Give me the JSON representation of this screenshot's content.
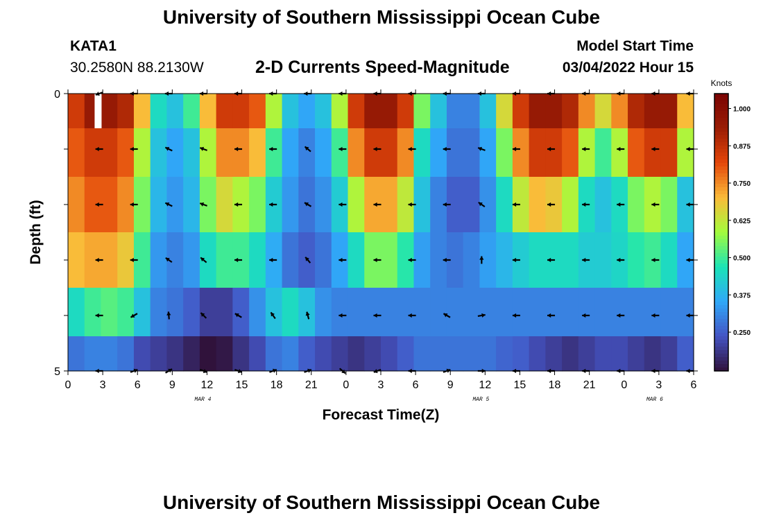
{
  "page": {
    "title": "University of Southern Mississippi Ocean Cube",
    "title_bottom": "University of Southern Mississippi Ocean Cube",
    "station_name": "KATA1",
    "station_coords": "30.2580N  88.2130W",
    "plot_title": "2-D Currents Speed-Magnitude",
    "model_label": "Model Start Time",
    "model_time": "03/04/2022 Hour 15"
  },
  "chart_data": {
    "type": "heatmap",
    "title": "2-D Currents Speed-Magnitude",
    "xlabel": "Forecast Time(Z)",
    "ylabel": "Depth (ft)",
    "x_ticks": [
      "0",
      "3",
      "6",
      "9",
      "12",
      "15",
      "18",
      "21",
      "0",
      "3",
      "6",
      "9",
      "12",
      "15",
      "18",
      "21",
      "0",
      "3",
      "6"
    ],
    "x_range_hours": [
      0,
      54
    ],
    "date_labels": [
      {
        "hour": 12,
        "label": "MAR 4"
      },
      {
        "hour": 36,
        "label": "MAR 5"
      },
      {
        "hour": 51,
        "label": "MAR 6"
      }
    ],
    "y_ticks": [
      "0",
      "5"
    ],
    "ylim": [
      0,
      5
    ],
    "colorbar": {
      "label": "Knots",
      "ticks": [
        "1.000",
        "0.875",
        "0.750",
        "0.625",
        "0.500",
        "0.375",
        "0.250"
      ],
      "tick_values": [
        1.0,
        0.875,
        0.75,
        0.625,
        0.5,
        0.375,
        0.25
      ],
      "range": [
        0.12,
        1.05
      ],
      "colors": [
        "#30123b",
        "#4454c4",
        "#30a8f8",
        "#1ae4b6",
        "#a4fc3c",
        "#fabb39",
        "#e4460a",
        "#9a1d05",
        "#7a0403"
      ]
    },
    "layers": [
      {
        "depth": 0.25,
        "speeds": [
          0.85,
          0.95,
          0.95,
          0.9,
          0.7,
          0.45,
          0.4,
          0.5,
          0.7,
          0.85,
          0.85,
          0.8,
          0.6,
          0.4,
          0.35,
          0.4,
          0.6,
          0.85,
          0.95,
          0.95,
          0.85,
          0.55,
          0.4,
          0.3,
          0.3,
          0.4,
          0.65,
          0.85,
          0.95,
          0.95,
          0.9,
          0.75,
          0.65,
          0.75,
          0.9,
          0.95,
          0.95,
          0.7
        ]
      },
      {
        "depth": 1.0,
        "speeds": [
          0.8,
          0.85,
          0.85,
          0.8,
          0.6,
          0.4,
          0.35,
          0.4,
          0.6,
          0.75,
          0.75,
          0.7,
          0.5,
          0.35,
          0.3,
          0.35,
          0.5,
          0.75,
          0.85,
          0.85,
          0.75,
          0.45,
          0.35,
          0.28,
          0.28,
          0.35,
          0.55,
          0.75,
          0.85,
          0.85,
          0.8,
          0.6,
          0.5,
          0.6,
          0.8,
          0.85,
          0.85,
          0.6
        ]
      },
      {
        "depth": 2.0,
        "speeds": [
          0.75,
          0.8,
          0.8,
          0.75,
          0.55,
          0.38,
          0.33,
          0.38,
          0.55,
          0.65,
          0.6,
          0.55,
          0.42,
          0.33,
          0.28,
          0.32,
          0.42,
          0.6,
          0.72,
          0.72,
          0.62,
          0.4,
          0.3,
          0.25,
          0.25,
          0.32,
          0.45,
          0.62,
          0.7,
          0.68,
          0.6,
          0.45,
          0.4,
          0.45,
          0.55,
          0.6,
          0.55,
          0.4
        ]
      },
      {
        "depth": 3.0,
        "speeds": [
          0.7,
          0.72,
          0.72,
          0.68,
          0.5,
          0.33,
          0.3,
          0.33,
          0.45,
          0.5,
          0.5,
          0.45,
          0.36,
          0.28,
          0.25,
          0.28,
          0.35,
          0.45,
          0.55,
          0.55,
          0.48,
          0.34,
          0.3,
          0.28,
          0.3,
          0.34,
          0.38,
          0.42,
          0.45,
          0.45,
          0.45,
          0.42,
          0.42,
          0.44,
          0.48,
          0.5,
          0.45,
          0.35
        ]
      },
      {
        "depth": 4.0,
        "speeds": [
          0.45,
          0.5,
          0.52,
          0.5,
          0.4,
          0.3,
          0.28,
          0.25,
          0.2,
          0.2,
          0.25,
          0.32,
          0.4,
          0.45,
          0.4,
          0.32,
          0.3,
          0.3,
          0.3,
          0.3,
          0.3,
          0.3,
          0.3,
          0.3,
          0.3,
          0.3,
          0.3,
          0.3,
          0.3,
          0.3,
          0.3,
          0.3,
          0.3,
          0.3,
          0.3,
          0.3,
          0.3,
          0.3
        ]
      },
      {
        "depth": 4.75,
        "speeds": [
          0.28,
          0.3,
          0.3,
          0.28,
          0.22,
          0.2,
          0.18,
          0.15,
          0.12,
          0.13,
          0.18,
          0.22,
          0.28,
          0.3,
          0.25,
          0.22,
          0.2,
          0.18,
          0.2,
          0.22,
          0.25,
          0.28,
          0.28,
          0.28,
          0.28,
          0.28,
          0.26,
          0.25,
          0.22,
          0.2,
          0.18,
          0.2,
          0.22,
          0.22,
          0.2,
          0.18,
          0.2,
          0.25
        ]
      }
    ],
    "surface_gap": {
      "hour_start": 2.3,
      "hour_end": 2.9
    },
    "vectors": [
      {
        "depth": 0.0,
        "hours": [
          2.7,
          5.7,
          8.7,
          11.7,
          14.7,
          17.7,
          20.7,
          23.7,
          26.7,
          29.7,
          32.7,
          35.7,
          38.7,
          41.7,
          44.7,
          47.7,
          50.7,
          53.7
        ],
        "angles": [
          200,
          180,
          180,
          180,
          180,
          180,
          180,
          180,
          180,
          180,
          180,
          180,
          180,
          180,
          180,
          180,
          180,
          180
        ]
      },
      {
        "depth": 1.0,
        "hours": [
          2.7,
          5.7,
          8.7,
          11.7,
          14.7,
          17.7,
          20.7,
          23.7,
          26.7,
          29.7,
          32.7,
          35.7,
          38.7,
          41.7,
          44.7,
          47.7,
          50.7,
          53.7
        ],
        "angles": [
          180,
          180,
          155,
          160,
          180,
          180,
          140,
          180,
          180,
          180,
          180,
          160,
          180,
          180,
          180,
          180,
          180,
          180
        ]
      },
      {
        "depth": 2.0,
        "hours": [
          2.7,
          5.7,
          8.7,
          11.7,
          14.7,
          17.7,
          20.7,
          23.7,
          26.7,
          29.7,
          32.7,
          35.7,
          38.7,
          41.7,
          44.7,
          47.7,
          50.7,
          53.7
        ],
        "angles": [
          180,
          180,
          155,
          160,
          180,
          180,
          150,
          180,
          180,
          180,
          180,
          145,
          180,
          180,
          180,
          180,
          180,
          180
        ]
      },
      {
        "depth": 3.0,
        "hours": [
          2.7,
          5.7,
          8.7,
          11.7,
          14.7,
          17.7,
          20.7,
          23.7,
          26.7,
          29.7,
          32.7,
          35.7,
          38.7,
          41.7,
          44.7,
          47.7,
          50.7,
          53.7
        ],
        "angles": [
          180,
          180,
          145,
          140,
          180,
          180,
          130,
          180,
          180,
          180,
          180,
          90,
          180,
          180,
          180,
          180,
          180,
          180
        ]
      },
      {
        "depth": 4.0,
        "hours": [
          2.7,
          5.7,
          8.7,
          11.7,
          14.7,
          17.7,
          20.7,
          23.7,
          26.7,
          29.7,
          32.7,
          35.7,
          38.7,
          41.7,
          44.7,
          47.7,
          50.7,
          53.7
        ],
        "angles": [
          180,
          210,
          95,
          135,
          150,
          125,
          105,
          180,
          180,
          180,
          150,
          10,
          180,
          180,
          180,
          180,
          180,
          180
        ]
      },
      {
        "depth": 5.0,
        "hours": [
          2.7,
          5.7,
          8.7,
          11.7,
          14.7,
          17.7,
          20.7,
          23.7,
          26.7,
          29.7,
          32.7,
          35.7,
          38.7,
          41.7,
          44.7,
          47.7,
          50.7,
          53.7
        ],
        "angles": [
          180,
          20,
          30,
          340,
          340,
          20,
          20,
          320,
          200,
          180,
          20,
          0,
          180,
          180,
          180,
          180,
          180,
          180
        ]
      }
    ]
  }
}
